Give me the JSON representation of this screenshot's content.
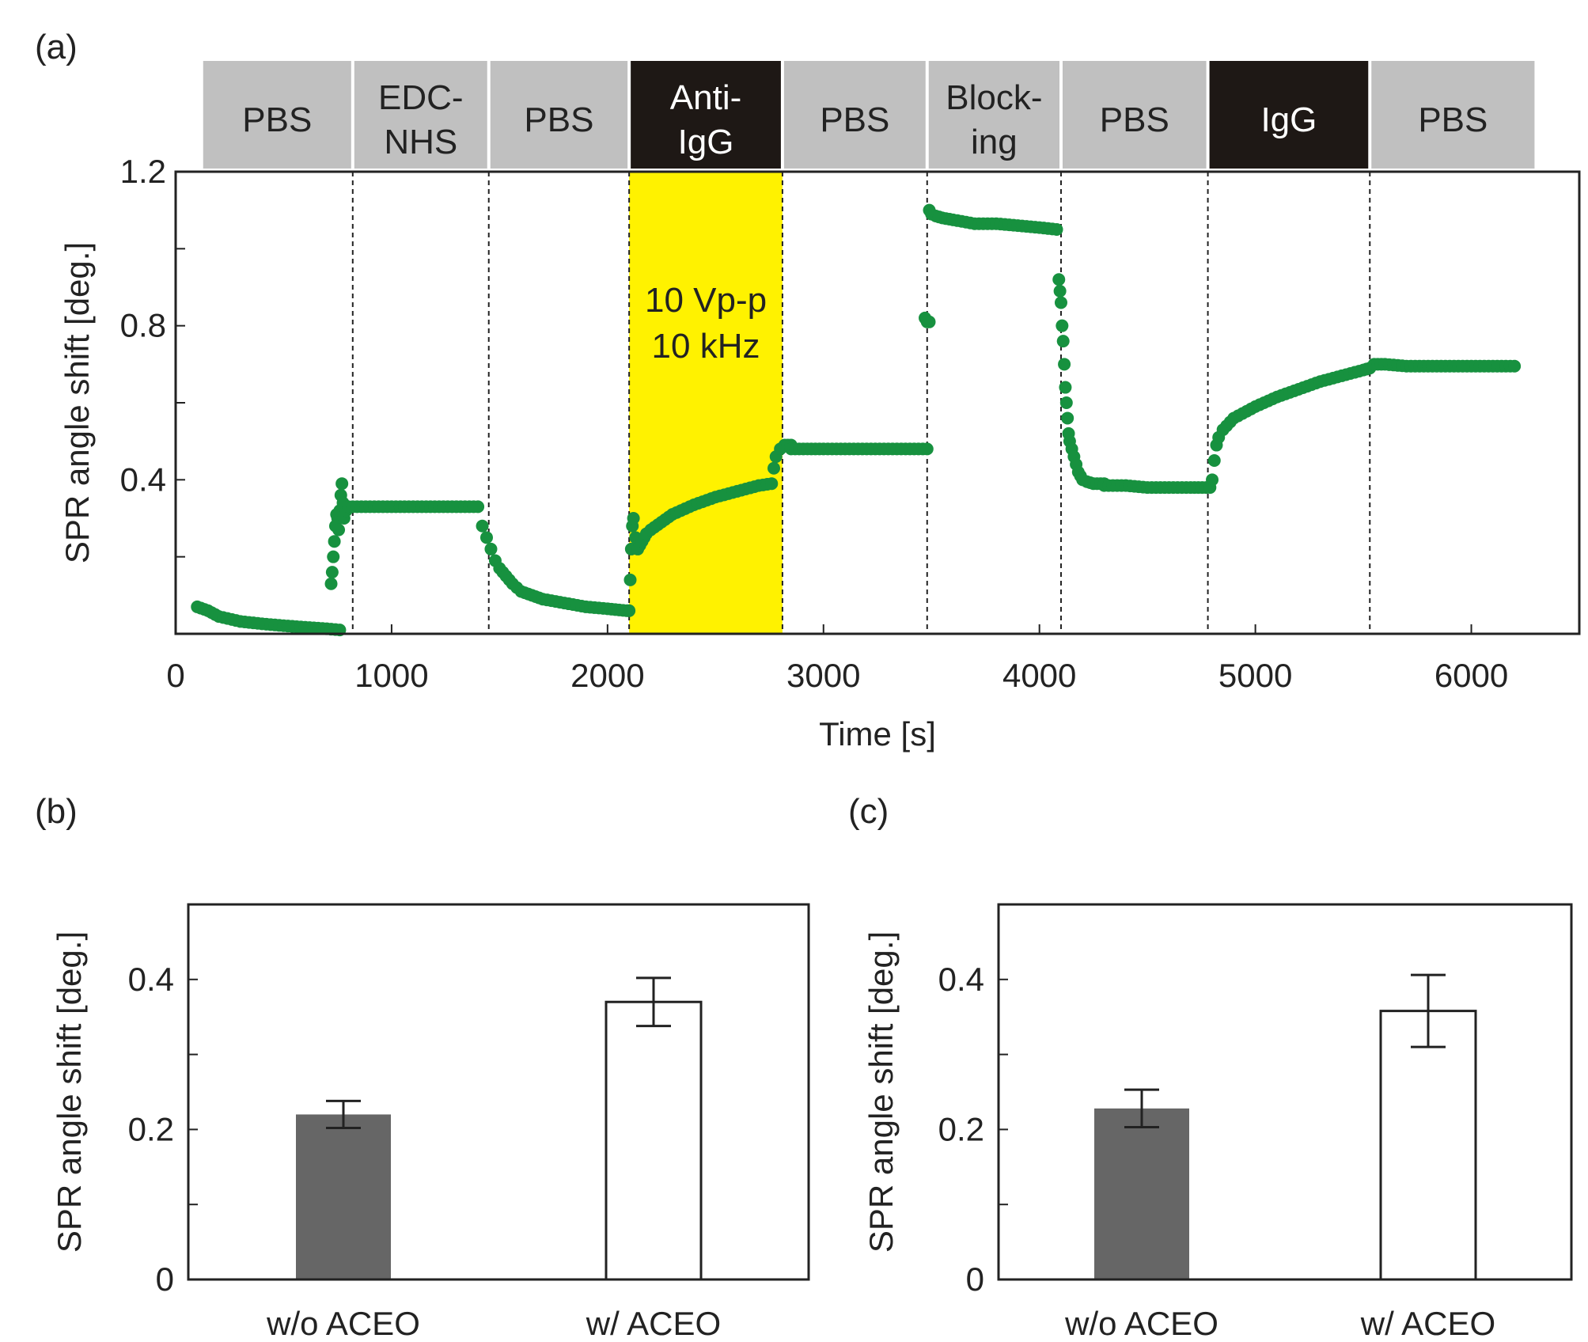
{
  "colors": {
    "series": "#17913f",
    "highlight": "#fff200",
    "phase_gray": "#c0c0c0",
    "phase_dark": "#1e1815",
    "bar_dark": "#666666",
    "bar_light": "#ffffff",
    "axis": "#222222"
  },
  "chart_data": [
    {
      "id": "a",
      "panel_label": "(a)",
      "type": "scatter",
      "xlabel": "Time [s]",
      "ylabel": "SPR angle shift [deg.]",
      "xlim": [
        0,
        6500
      ],
      "ylim": [
        0,
        1.2
      ],
      "x_ticks": [
        {
          "value": 0,
          "label": "0"
        },
        {
          "value": 1000,
          "label": "1000"
        },
        {
          "value": 2000,
          "label": "2000"
        },
        {
          "value": 3000,
          "label": "3000"
        },
        {
          "value": 4000,
          "label": "4000"
        },
        {
          "value": 5000,
          "label": "5000"
        },
        {
          "value": 6000,
          "label": "6000"
        }
      ],
      "y_ticks": [
        {
          "value": 0.2,
          "label": ""
        },
        {
          "value": 0.4,
          "label": "0.4"
        },
        {
          "value": 0.6,
          "label": ""
        },
        {
          "value": 0.8,
          "label": "0.8"
        },
        {
          "value": 1.0,
          "label": ""
        },
        {
          "value": 1.2,
          "label": "1.2"
        }
      ],
      "phase_boundaries": [
        820,
        1450,
        2100,
        2810,
        3480,
        4100,
        4780,
        5530
      ],
      "phases": [
        {
          "lines": [
            "PBS"
          ],
          "start": 120,
          "end": 820,
          "style": "gray"
        },
        {
          "lines": [
            "EDC-",
            "NHS"
          ],
          "start": 820,
          "end": 1450,
          "style": "gray"
        },
        {
          "lines": [
            "PBS"
          ],
          "start": 1450,
          "end": 2100,
          "style": "gray"
        },
        {
          "lines": [
            "Anti-",
            "IgG"
          ],
          "start": 2100,
          "end": 2810,
          "style": "dark"
        },
        {
          "lines": [
            "PBS"
          ],
          "start": 2810,
          "end": 3480,
          "style": "gray"
        },
        {
          "lines": [
            "Block-",
            "ing"
          ],
          "start": 3480,
          "end": 4100,
          "style": "gray"
        },
        {
          "lines": [
            "PBS"
          ],
          "start": 4100,
          "end": 4780,
          "style": "gray"
        },
        {
          "lines": [
            "IgG"
          ],
          "start": 4780,
          "end": 5530,
          "style": "dark"
        },
        {
          "lines": [
            "PBS"
          ],
          "start": 5530,
          "end": 6300,
          "style": "gray"
        }
      ],
      "highlight": {
        "start": 2100,
        "end": 2810,
        "lines": [
          "10 Vp-p",
          "10 kHz"
        ]
      },
      "series": [
        {
          "name": "SPR signal",
          "segments": [
            {
              "x": [
                100,
                150,
                200,
                300,
                400,
                500,
                600,
                700,
                760
              ],
              "y": [
                0.07,
                0.06,
                0.045,
                0.032,
                0.026,
                0.021,
                0.017,
                0.013,
                0.01
              ]
            },
            {
              "x": [
                720,
                725,
                730,
                735,
                740,
                745,
                750,
                755,
                760,
                765,
                770,
                775,
                780,
                790,
                800
              ],
              "y": [
                0.13,
                0.16,
                0.2,
                0.24,
                0.28,
                0.31,
                0.3,
                0.27,
                0.32,
                0.36,
                0.39,
                0.34,
                0.3,
                0.32,
                0.33
              ]
            },
            {
              "x": [
                820,
                900,
                1000,
                1100,
                1200,
                1300,
                1400
              ],
              "y": [
                0.33,
                0.33,
                0.33,
                0.33,
                0.33,
                0.33,
                0.33
              ]
            },
            {
              "x": [
                1420,
                1440,
                1460,
                1480,
                1500,
                1530,
                1560,
                1600,
                1650,
                1700,
                1800,
                1900,
                2000,
                2090
              ],
              "y": [
                0.28,
                0.25,
                0.22,
                0.19,
                0.17,
                0.15,
                0.13,
                0.11,
                0.1,
                0.09,
                0.08,
                0.07,
                0.065,
                0.06
              ]
            },
            {
              "x": [
                2100,
                2105,
                2110,
                2115,
                2120,
                2130,
                2140,
                2150,
                2160,
                2170,
                2180,
                2200,
                2250,
                2300,
                2400,
                2500,
                2600,
                2700,
                2760,
                2770,
                2780,
                2800,
                2820,
                2850
              ],
              "y": [
                0.06,
                0.14,
                0.22,
                0.28,
                0.3,
                0.25,
                0.22,
                0.23,
                0.24,
                0.25,
                0.26,
                0.27,
                0.29,
                0.31,
                0.335,
                0.355,
                0.37,
                0.385,
                0.39,
                0.43,
                0.46,
                0.48,
                0.49,
                0.49
              ]
            },
            {
              "x": [
                2850,
                3000,
                3100,
                3200,
                3300,
                3400,
                3480
              ],
              "y": [
                0.48,
                0.48,
                0.48,
                0.48,
                0.48,
                0.48,
                0.48
              ]
            },
            {
              "x": [
                3470,
                3480,
                3490
              ],
              "y": [
                0.82,
                0.81,
                0.81
              ]
            },
            {
              "x": [
                3490,
                3500,
                3520,
                3550,
                3600,
                3700,
                3800,
                3900,
                4000,
                4080
              ],
              "y": [
                1.1,
                1.09,
                1.085,
                1.08,
                1.075,
                1.065,
                1.065,
                1.06,
                1.055,
                1.05
              ]
            },
            {
              "x": [
                4090,
                4095,
                4100,
                4105,
                4110,
                4115,
                4120,
                4125,
                4130,
                4135,
                4140,
                4150,
                4160,
                4170,
                4180,
                4190,
                4200,
                4220,
                4250,
                4300
              ],
              "y": [
                0.92,
                0.89,
                0.86,
                0.8,
                0.76,
                0.7,
                0.64,
                0.6,
                0.56,
                0.52,
                0.5,
                0.48,
                0.46,
                0.44,
                0.42,
                0.41,
                0.4,
                0.395,
                0.39,
                0.39
              ]
            },
            {
              "x": [
                4300,
                4400,
                4500,
                4600,
                4700,
                4790
              ],
              "y": [
                0.385,
                0.385,
                0.38,
                0.38,
                0.38,
                0.38
              ]
            },
            {
              "x": [
                4800,
                4810,
                4820,
                4830,
                4850,
                4900,
                5000,
                5100,
                5200,
                5300,
                5400,
                5500,
                5530
              ],
              "y": [
                0.4,
                0.45,
                0.49,
                0.51,
                0.53,
                0.56,
                0.59,
                0.615,
                0.635,
                0.655,
                0.67,
                0.685,
                0.69
              ]
            },
            {
              "x": [
                5550,
                5600,
                5700,
                5800,
                5900,
                6000,
                6100,
                6200
              ],
              "y": [
                0.7,
                0.7,
                0.695,
                0.695,
                0.695,
                0.695,
                0.695,
                0.695
              ]
            }
          ]
        }
      ]
    },
    {
      "id": "b",
      "panel_label": "(b)",
      "type": "bar",
      "ylabel": "SPR angle shift [deg.]",
      "ylim": [
        0,
        0.5
      ],
      "y_ticks": [
        {
          "value": 0,
          "label": "0"
        },
        {
          "value": 0.1,
          "label": ""
        },
        {
          "value": 0.2,
          "label": "0.2"
        },
        {
          "value": 0.3,
          "label": ""
        },
        {
          "value": 0.4,
          "label": "0.4"
        }
      ],
      "categories": [
        "w/o ACEO",
        "w/ ACEO"
      ],
      "values": [
        0.22,
        0.37
      ],
      "errors": [
        0.018,
        0.032
      ],
      "bar_styles": [
        "dark",
        "light"
      ]
    },
    {
      "id": "c",
      "panel_label": "(c)",
      "type": "bar",
      "ylabel": "SPR angle shift [deg.]",
      "ylim": [
        0,
        0.5
      ],
      "y_ticks": [
        {
          "value": 0,
          "label": "0"
        },
        {
          "value": 0.1,
          "label": ""
        },
        {
          "value": 0.2,
          "label": "0.2"
        },
        {
          "value": 0.3,
          "label": ""
        },
        {
          "value": 0.4,
          "label": "0.4"
        }
      ],
      "categories": [
        "w/o ACEO",
        "w/ ACEO"
      ],
      "values": [
        0.228,
        0.358
      ],
      "errors": [
        0.025,
        0.048
      ],
      "bar_styles": [
        "dark",
        "light"
      ]
    }
  ]
}
